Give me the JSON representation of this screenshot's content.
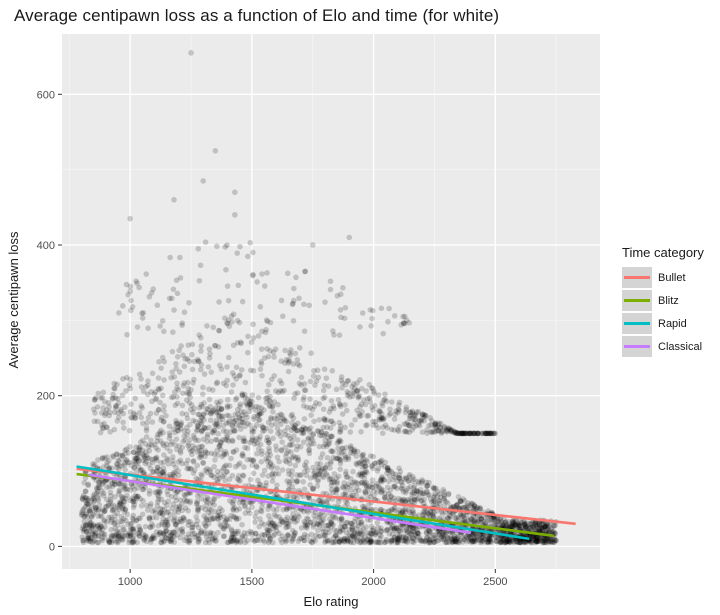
{
  "chart_data": {
    "type": "scatter",
    "title": "Average centipawn loss as a function of Elo and time (for white)",
    "xlabel": "Elo rating",
    "ylabel": "Average centipawn loss",
    "xlim": [
      720,
      2930
    ],
    "ylim": [
      -30,
      680
    ],
    "xticks": [
      1000,
      1500,
      2000,
      2500
    ],
    "yticks": [
      0,
      200,
      400,
      600
    ],
    "grid": true,
    "legend_title": "Time category",
    "legend_position": "right",
    "scatter_points_approx": {
      "color": "#000000",
      "opacity": 0.18,
      "dense_region": {
        "x": [
          800,
          2700
        ],
        "y": [
          5,
          180
        ]
      },
      "notable_outliers": [
        [
          1250,
          655
        ],
        [
          1350,
          525
        ],
        [
          1300,
          485
        ],
        [
          1430,
          470
        ],
        [
          1180,
          460
        ],
        [
          1430,
          440
        ],
        [
          1280,
          395
        ],
        [
          1750,
          400
        ],
        [
          1900,
          410
        ],
        [
          1000,
          435
        ]
      ]
    },
    "series": [
      {
        "name": "Bullet",
        "color": "#F8766D",
        "x": [
          780,
          2830
        ],
        "y": [
          103,
          30
        ]
      },
      {
        "name": "Blitz",
        "color": "#7CAE00",
        "x": [
          780,
          2740
        ],
        "y": [
          96,
          14
        ]
      },
      {
        "name": "Rapid",
        "color": "#00BFC4",
        "x": [
          780,
          2640
        ],
        "y": [
          106,
          10
        ]
      },
      {
        "name": "Classical",
        "color": "#C77CFF",
        "x": [
          830,
          2400
        ],
        "y": [
          95,
          18
        ]
      }
    ]
  }
}
